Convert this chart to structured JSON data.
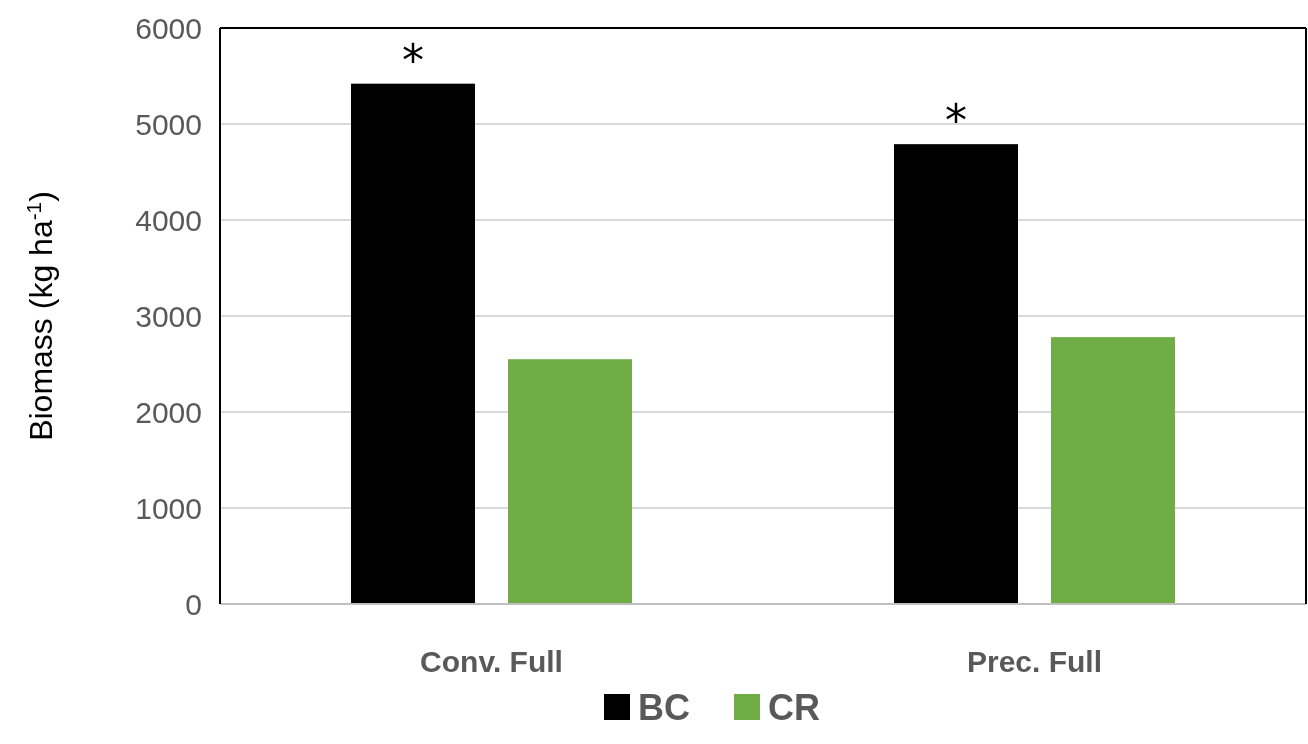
{
  "chart_data": {
    "type": "bar",
    "ylabel": "Biomass (kg ha$^{-1}$)",
    "categories": [
      "Conv. Full",
      "Prec. Full"
    ],
    "series": [
      {
        "name": "BC",
        "color": "#000000",
        "values": [
          5420,
          4790
        ]
      },
      {
        "name": "CR",
        "color": "#70ad47",
        "values": [
          2550,
          2780
        ]
      }
    ],
    "ylim": [
      0,
      6000
    ],
    "yticks": [
      0,
      1000,
      2000,
      3000,
      4000,
      5000,
      6000
    ],
    "grid": "y",
    "legend": "bottom",
    "annotations": [
      "*",
      "*"
    ]
  }
}
